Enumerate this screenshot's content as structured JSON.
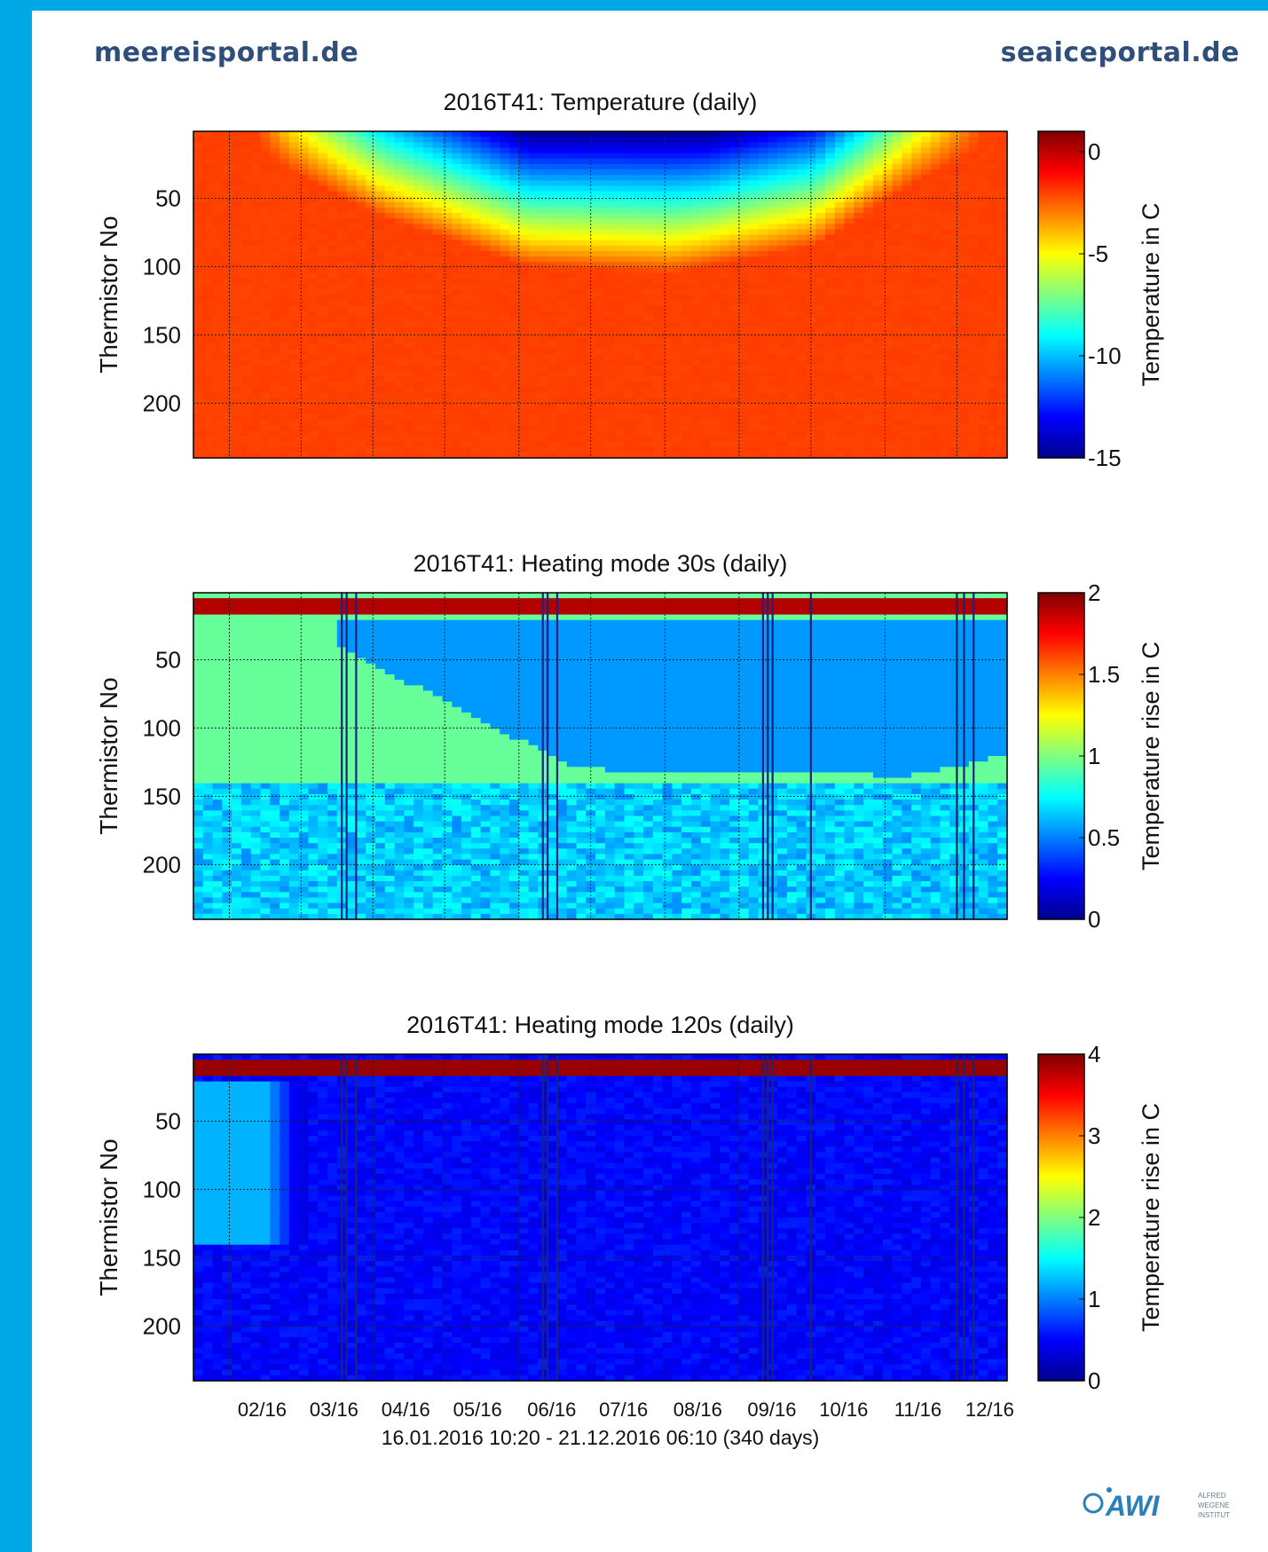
{
  "header": {
    "left_site": "meereisportal.de",
    "right_site": "seaiceportal.de"
  },
  "logo": {
    "text": "AWI",
    "subtitle": "ALFRED WEGENER INSTITUT"
  },
  "chart_data": [
    {
      "type": "heatmap",
      "title": "2016T41: Temperature (daily)",
      "ylabel": "Thermistor No",
      "yticks": [
        50,
        100,
        150,
        200
      ],
      "ylim": [
        240,
        1
      ],
      "x_category_ticks": [
        "02/16",
        "03/16",
        "04/16",
        "05/16",
        "06/16",
        "07/16",
        "08/16",
        "09/16",
        "10/16",
        "11/16",
        "12/16"
      ],
      "xlim_days": [
        0,
        340
      ],
      "colorbar": {
        "label": "Temperature in C",
        "ticks": [
          0,
          -5,
          -10,
          -15
        ],
        "range": [
          -15,
          1
        ],
        "colormap": "jet"
      },
      "features": {
        "base_value": -2,
        "cold_front_surface_depth_profile": [
          {
            "day": 0,
            "depth": 0
          },
          {
            "day": 20,
            "depth": 5
          },
          {
            "day": 40,
            "depth": 30
          },
          {
            "day": 80,
            "depth": 65
          },
          {
            "day": 140,
            "depth": 100
          },
          {
            "day": 200,
            "depth": 105
          },
          {
            "day": 260,
            "depth": 85
          },
          {
            "day": 300,
            "depth": 40
          },
          {
            "day": 340,
            "depth": 5
          }
        ],
        "min_surface_temp": -15
      }
    },
    {
      "type": "heatmap",
      "title": "2016T41: Heating mode 30s (daily)",
      "ylabel": "Thermistor No",
      "yticks": [
        50,
        100,
        150,
        200
      ],
      "ylim": [
        240,
        1
      ],
      "x_category_ticks": [
        "02/16",
        "03/16",
        "04/16",
        "05/16",
        "06/16",
        "07/16",
        "08/16",
        "09/16",
        "10/16",
        "11/16",
        "12/16"
      ],
      "xlim_days": [
        0,
        340
      ],
      "colorbar": {
        "label": "Temperature rise in C",
        "ticks": [
          2,
          1.5,
          1,
          0.5,
          0
        ],
        "range": [
          0,
          2
        ],
        "colormap": "jet"
      },
      "features": {
        "surface_band_thermistors": [
          5,
          18
        ],
        "surface_band_value": 1.9,
        "air_value": 0.95,
        "ice_value": 0.55,
        "water_value": 0.65,
        "missing_days": [
          62,
          64,
          68,
          146,
          148,
          152,
          238,
          240,
          242,
          258,
          319,
          322,
          326
        ]
      }
    },
    {
      "type": "heatmap",
      "title": "2016T41: Heating mode 120s (daily)",
      "ylabel": "Thermistor No",
      "yticks": [
        50,
        100,
        150,
        200
      ],
      "ylim": [
        240,
        1
      ],
      "x_category_ticks": [
        "02/16",
        "03/16",
        "04/16",
        "05/16",
        "06/16",
        "07/16",
        "08/16",
        "09/16",
        "10/16",
        "11/16",
        "12/16"
      ],
      "x_category_days": [
        15,
        45,
        75,
        105,
        136,
        166,
        197,
        228,
        258,
        289,
        319
      ],
      "xlim_days": [
        0,
        340
      ],
      "xlabel": "16.01.2016 10:20 - 21.12.2016 06:10 (340 days)",
      "colorbar": {
        "label": "Temperature rise in C",
        "ticks": [
          4,
          3,
          2,
          1,
          0
        ],
        "range": [
          0,
          4
        ],
        "colormap": "jet"
      },
      "features": {
        "surface_band_thermistors": [
          3,
          18
        ],
        "surface_band_value": 3.9,
        "background_value": 0.5,
        "early_snow_value": 1.2,
        "missing_days": [
          62,
          64,
          68,
          146,
          148,
          152,
          238,
          240,
          242,
          258,
          319,
          322,
          326
        ]
      }
    }
  ]
}
